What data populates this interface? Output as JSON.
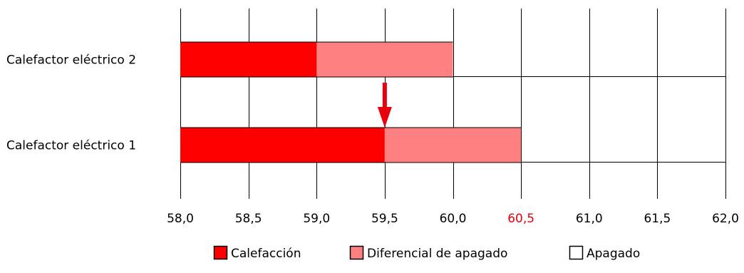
{
  "chart_data": {
    "type": "bar",
    "orientation": "horizontal",
    "stacked": true,
    "categories": [
      "Calefactor eléctrico 2",
      "Calefactor eléctrico 1"
    ],
    "xlim": [
      58.0,
      62.0
    ],
    "xticks": [
      "58,0",
      "58,5",
      "59,0",
      "59,5",
      "60,0",
      "60,5",
      "61,0",
      "61,5",
      "62,0"
    ],
    "highlighted_tick": "60,5",
    "grid": true,
    "legend_position": "bottom",
    "bars": [
      {
        "category": "Calefactor eléctrico 2",
        "segments": [
          {
            "state": "Calefacción",
            "start": 58.0,
            "end": 59.0
          },
          {
            "state": "Diferencial de apagado",
            "start": 59.0,
            "end": 60.0
          },
          {
            "state": "Apagado",
            "start": 60.0,
            "end": 62.0
          }
        ]
      },
      {
        "category": "Calefactor eléctrico 1",
        "segments": [
          {
            "state": "Calefacción",
            "start": 58.0,
            "end": 59.5
          },
          {
            "state": "Diferencial de apagado",
            "start": 59.5,
            "end": 60.5
          },
          {
            "state": "Apagado",
            "start": 60.5,
            "end": 62.0
          }
        ]
      }
    ],
    "arrow_marker": {
      "x": 59.5,
      "direction": "down"
    },
    "legend": [
      {
        "label": "Calefacción",
        "color": "#ff0000"
      },
      {
        "label": "Diferencial de apagado",
        "color": "#ff8080"
      },
      {
        "label": "Apagado",
        "color": "#ffffff"
      }
    ],
    "colors": {
      "heating": "#ff0000",
      "differential": "#ff8080",
      "off": "#ffffff",
      "grid": "#000000",
      "highlight": "#e8000d",
      "arrow": "#e8000d"
    }
  }
}
